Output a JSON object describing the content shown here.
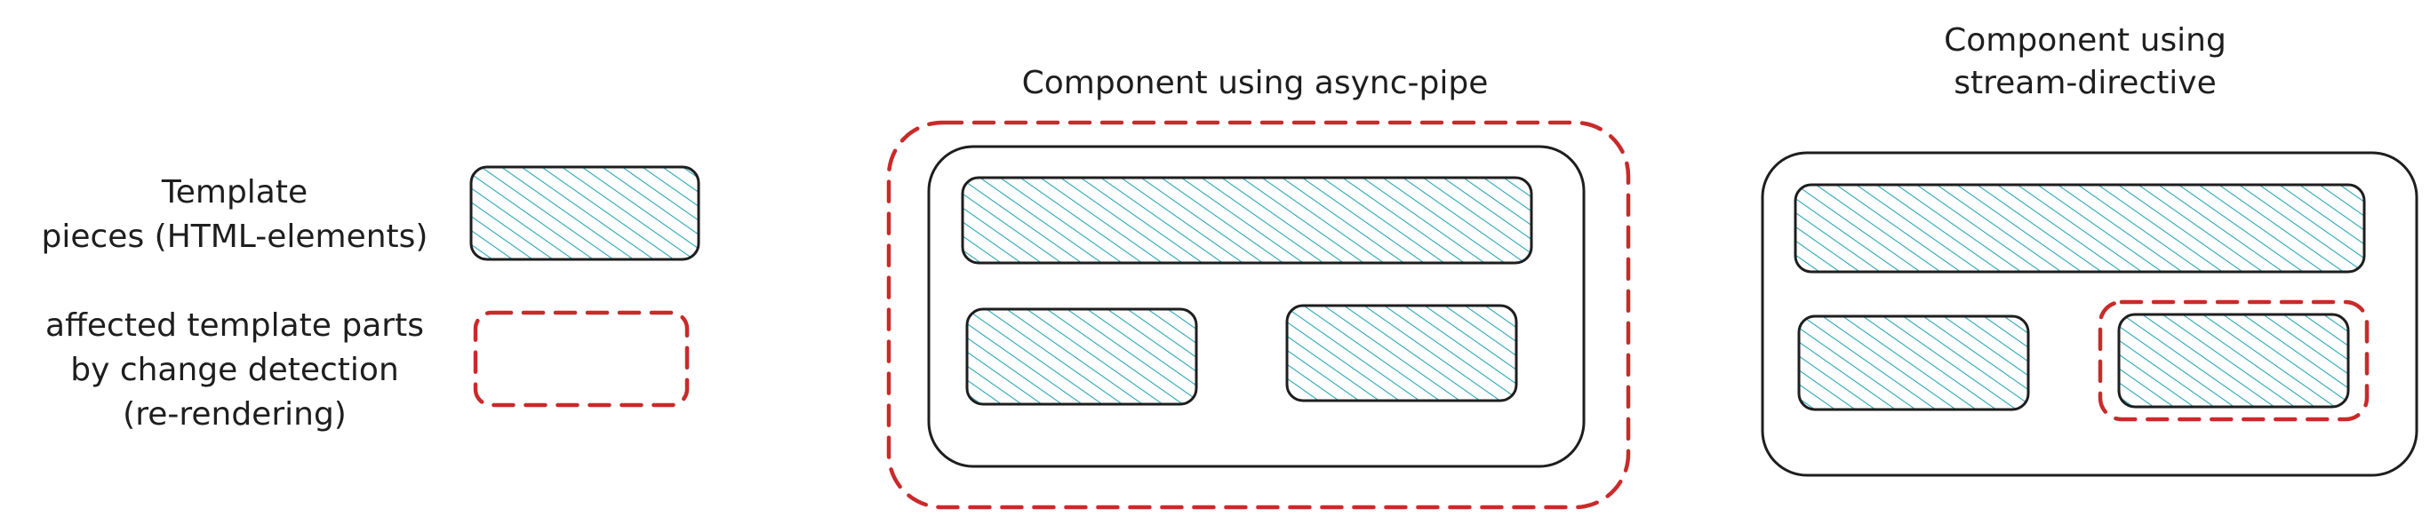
{
  "colors": {
    "ink": "#1e1e1e",
    "hatch": "#2aa6b5",
    "highlight": "#c92a2a"
  },
  "legend": {
    "template_pieces": {
      "line1": "Template",
      "line2": "pieces (HTML-elements)"
    },
    "affected_parts": {
      "line1": "affected template parts",
      "line2": "by change detection",
      "line3": "(re-rendering)"
    }
  },
  "component_async_pipe": {
    "title": "Component using async-pipe"
  },
  "component_stream_directive": {
    "title_line1": "Component using",
    "title_line2": "stream-directive"
  }
}
